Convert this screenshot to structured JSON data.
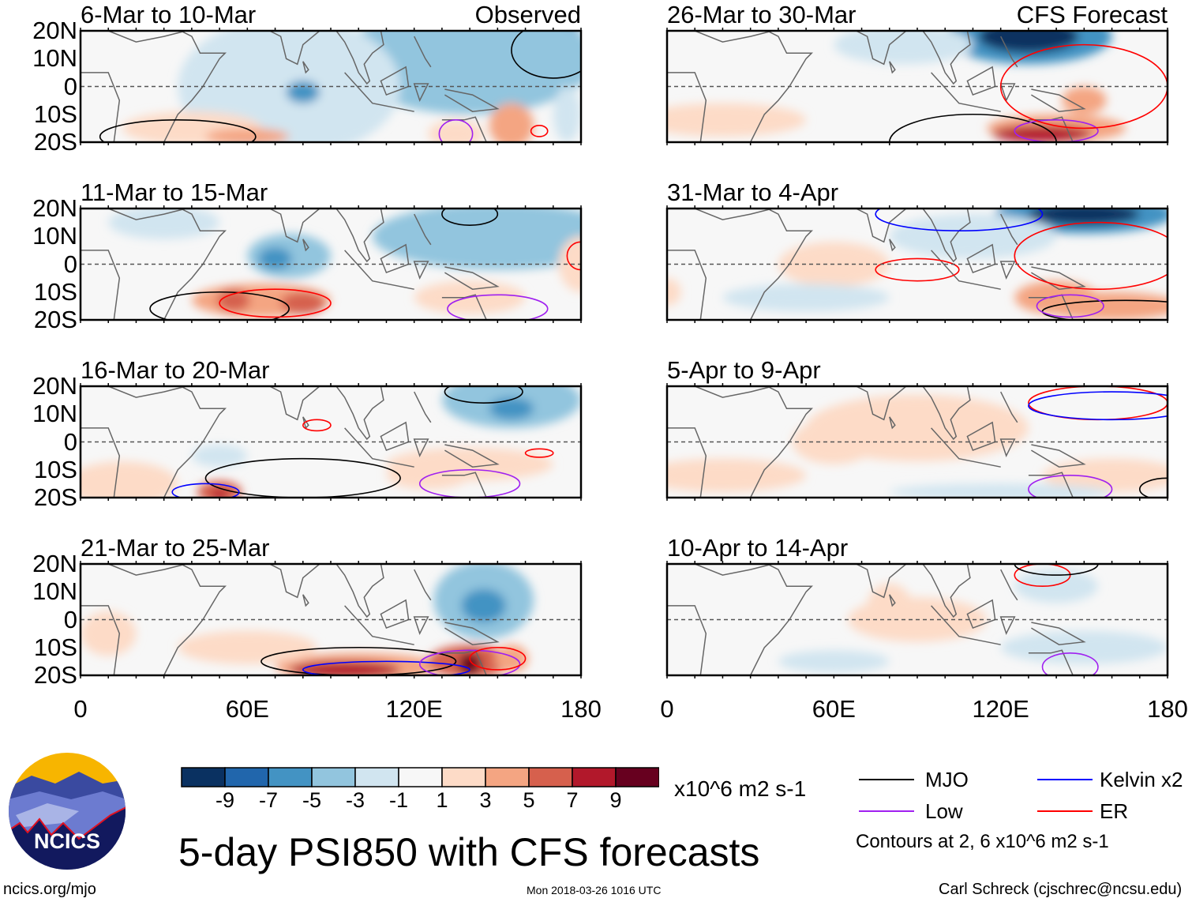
{
  "panels": [
    {
      "title": "6-Mar to 10-Mar",
      "tag": "Observed"
    },
    {
      "title": "11-Mar to 15-Mar",
      "tag": ""
    },
    {
      "title": "16-Mar to 20-Mar",
      "tag": ""
    },
    {
      "title": "21-Mar to 25-Mar",
      "tag": ""
    },
    {
      "title": "26-Mar to 30-Mar",
      "tag": "CFS Forecast"
    },
    {
      "title": "31-Mar to 4-Apr",
      "tag": ""
    },
    {
      "title": "5-Apr to 9-Apr",
      "tag": ""
    },
    {
      "title": "10-Apr to 14-Apr",
      "tag": ""
    }
  ],
  "y_ticks": [
    "20N",
    "10N",
    "0",
    "10S",
    "20S"
  ],
  "x_ticks": [
    "0",
    "60E",
    "120E",
    "180"
  ],
  "colorbar": {
    "ticks": [
      "-9",
      "-7",
      "-5",
      "-3",
      "-1",
      "1",
      "3",
      "5",
      "7",
      "9"
    ],
    "colors": [
      "#0a3161",
      "#2166ac",
      "#4393c3",
      "#92c5de",
      "#d1e5f0",
      "#f7f7f7",
      "#fddbc7",
      "#f4a582",
      "#d6604d",
      "#b2182b",
      "#67001f"
    ],
    "units": "x10^6 m2 s-1"
  },
  "legend": {
    "items": [
      {
        "label": "MJO",
        "color": "#000000"
      },
      {
        "label": "Kelvin x2",
        "color": "#0000ff"
      },
      {
        "label": "Low",
        "color": "#a020f0"
      },
      {
        "label": "ER",
        "color": "#ff0000"
      }
    ],
    "note": "Contours at 2, 6 x10^6 m2 s-1"
  },
  "title": "5-day PSI850 with CFS forecasts",
  "logo_text": "NCICS",
  "footer": {
    "left": "ncics.org/mjo",
    "center": "Mon 2018-03-26 1016 UTC",
    "right": "Carl Schreck (cjschrec@ncsu.edu)"
  }
}
